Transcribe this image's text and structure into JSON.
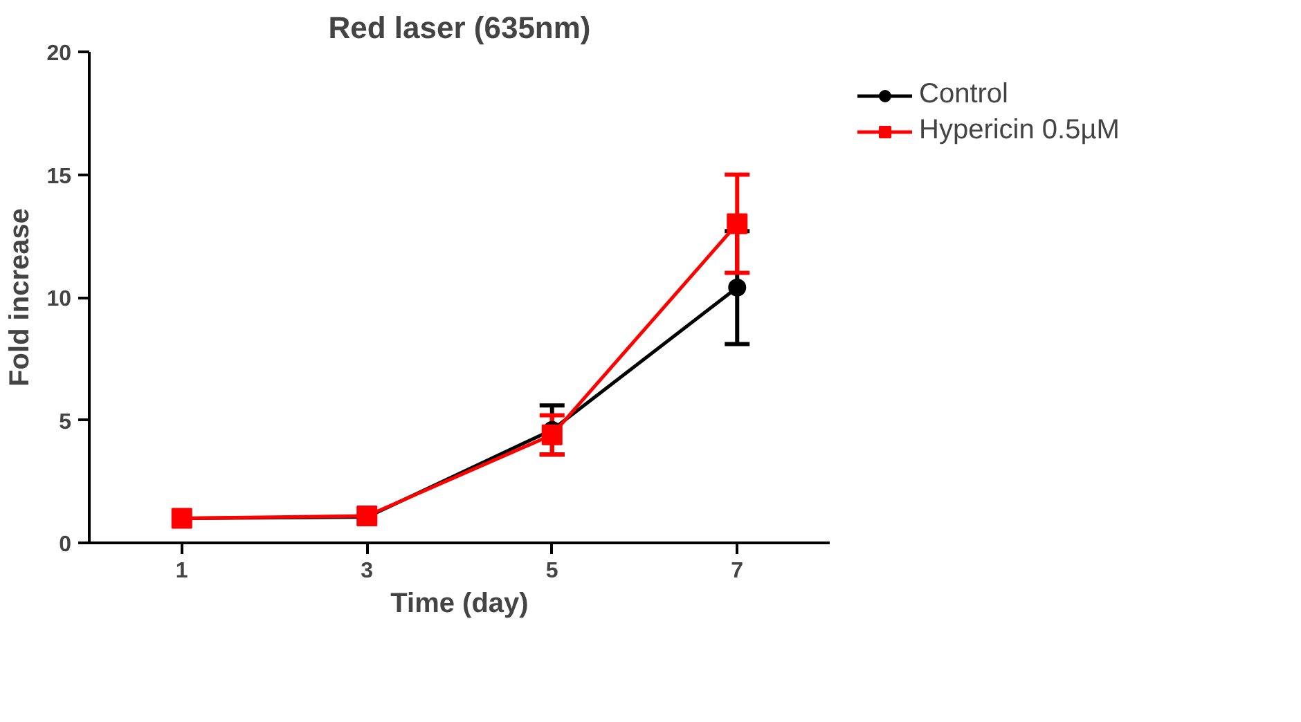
{
  "chart_data": {
    "type": "line",
    "title": "Red laser (635nm)",
    "xlabel": "Time (day)",
    "ylabel": "Fold increase",
    "x": [
      1,
      3,
      5,
      7
    ],
    "xlim": [
      0,
      8
    ],
    "xticks": [
      1,
      3,
      5,
      7
    ],
    "ylim": [
      0,
      20
    ],
    "yticks": [
      0,
      5,
      10,
      15,
      20
    ],
    "grid": false,
    "legend": "top right",
    "series": [
      {
        "name": "Control",
        "color": "#000000",
        "marker": "circle",
        "values": [
          1.0,
          1.05,
          4.6,
          10.4
        ],
        "errors": [
          null,
          null,
          1.0,
          2.3
        ]
      },
      {
        "name": "Hypericin 0.5µM",
        "color": "#ff0000",
        "marker": "square",
        "values": [
          1.0,
          1.1,
          4.4,
          13.0
        ],
        "errors": [
          null,
          null,
          0.8,
          2.0
        ]
      }
    ]
  }
}
